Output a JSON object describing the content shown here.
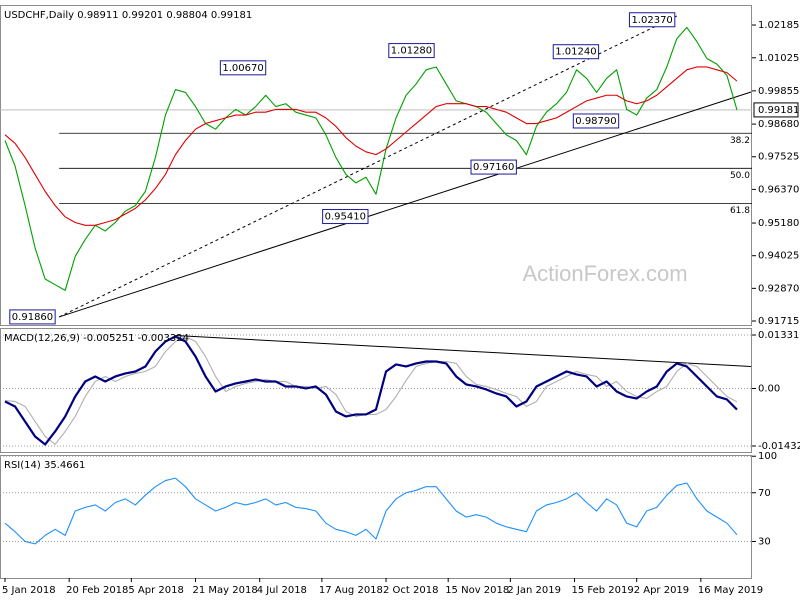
{
  "chart_data": [
    {
      "type": "line",
      "title": "USDCHF,Daily  0.98911 0.99201 0.98804 0.99181",
      "watermark": "ActionForex.com",
      "xlim": [
        -2.5,
        372.5
      ],
      "ylim": [
        0.91574,
        1.02892
      ],
      "yticks": [
        1.02185,
        1.01025,
        0.99855,
        {
          "value": 0.9868,
          "label": "0.98680"
        },
        0.97525,
        {
          "value": 0.9637,
          "label": "0.96370"
        },
        {
          "value": 0.9518,
          "label": "0.95180"
        },
        0.94025,
        {
          "value": 0.9287,
          "label": "0.92870"
        },
        0.91715
      ],
      "grid": false,
      "x": [
        0,
        5,
        10,
        15,
        20,
        25,
        30,
        35,
        40,
        45,
        50,
        55,
        60,
        65,
        70,
        75,
        80,
        85,
        90,
        95,
        100,
        105,
        110,
        115,
        120,
        125,
        130,
        135,
        140,
        145,
        150,
        155,
        160,
        165,
        170,
        175,
        180,
        185,
        190,
        195,
        200,
        205,
        210,
        215,
        220,
        225,
        230,
        235,
        240,
        245,
        250,
        255,
        260,
        265,
        270,
        275,
        280,
        285,
        290,
        295,
        300,
        305,
        310,
        315,
        320,
        325,
        330,
        335,
        340,
        345,
        350,
        355,
        360,
        365
      ],
      "series": [
        {
          "name": "USDCHF",
          "color": "#00a000",
          "values": [
            0.981,
            0.972,
            0.958,
            0.943,
            0.932,
            0.93,
            0.928,
            0.94,
            0.946,
            0.951,
            0.949,
            0.952,
            0.956,
            0.958,
            0.963,
            0.975,
            0.99,
            0.999,
            0.998,
            0.993,
            0.987,
            0.985,
            0.989,
            0.992,
            0.99,
            0.993,
            0.997,
            0.993,
            0.994,
            0.991,
            0.99,
            0.989,
            0.983,
            0.975,
            0.969,
            0.966,
            0.968,
            0.962,
            0.978,
            0.989,
            0.997,
            1.001,
            1.006,
            1.007,
            1.001,
            0.995,
            0.994,
            0.993,
            0.991,
            0.987,
            0.983,
            0.981,
            0.976,
            0.986,
            0.991,
            0.994,
            0.998,
            1.006,
            1.003,
            0.998,
            1.003,
            1.006,
            0.992,
            0.99,
            0.996,
            0.999,
            1.007,
            1.017,
            1.021,
            1.016,
            1.01,
            1.008,
            1.004,
            0.9918
          ]
        },
        {
          "name": "MA",
          "color": "#e00000",
          "values": [
            0.983,
            0.98,
            0.975,
            0.969,
            0.963,
            0.958,
            0.954,
            0.952,
            0.951,
            0.951,
            0.952,
            0.953,
            0.955,
            0.957,
            0.96,
            0.964,
            0.969,
            0.976,
            0.981,
            0.985,
            0.987,
            0.988,
            0.989,
            0.99,
            0.99,
            0.991,
            0.991,
            0.992,
            0.992,
            0.992,
            0.991,
            0.991,
            0.989,
            0.986,
            0.982,
            0.979,
            0.977,
            0.976,
            0.978,
            0.981,
            0.984,
            0.987,
            0.99,
            0.993,
            0.994,
            0.994,
            0.994,
            0.993,
            0.993,
            0.992,
            0.991,
            0.989,
            0.987,
            0.987,
            0.988,
            0.989,
            0.991,
            0.993,
            0.995,
            0.996,
            0.997,
            0.997,
            0.995,
            0.994,
            0.995,
            0.997,
            1.0,
            1.003,
            1.006,
            1.007,
            1.007,
            1.006,
            1.005,
            1.002
          ]
        }
      ],
      "last_price": 0.99181,
      "annotations": [
        {
          "x": 27,
          "value": 0.9186,
          "label": "0.91860"
        },
        {
          "x": 183,
          "value": 0.9541,
          "label": "0.95410"
        },
        {
          "x": 257,
          "value": 0.9716,
          "label": "0.97160"
        },
        {
          "x": 308,
          "value": 0.9879,
          "label": "0.98790"
        },
        {
          "x": 132,
          "value": 1.0067,
          "label": "1.00670"
        },
        {
          "x": 216,
          "value": 1.0128,
          "label": "1.01280"
        },
        {
          "x": 298,
          "value": 1.0124,
          "label": "1.01240"
        },
        {
          "x": 336,
          "value": 1.0237,
          "label": "1.02370"
        }
      ],
      "fib": {
        "from": 0.9186,
        "to": 1.0237,
        "start_x": 27,
        "levels": [
          38.2,
          {
            "value": 50,
            "label": "50.0"
          },
          61.8
        ]
      },
      "lines": [
        {
          "x": [
            27,
            372
          ],
          "y": [
            0.9186,
            0.99815
          ],
          "style": "solid"
        },
        {
          "x": [
            27,
            336
          ],
          "y": [
            0.9186,
            1.02538
          ],
          "style": "dashed"
        }
      ]
    },
    {
      "type": "line",
      "title": "MACD(12,26,9) -0.005251 -0.003324",
      "xlim": [
        -2.5,
        372.5
      ],
      "ylim": [
        -0.01582,
        0.01506
      ],
      "yticks": [
        0.013319,
        {
          "value": 0,
          "label": "0.00"
        },
        -0.014323
      ],
      "grid": true,
      "x": [
        0,
        5,
        10,
        15,
        20,
        25,
        30,
        35,
        40,
        45,
        50,
        55,
        60,
        65,
        70,
        75,
        80,
        85,
        90,
        95,
        100,
        105,
        110,
        115,
        120,
        125,
        130,
        135,
        140,
        145,
        150,
        155,
        160,
        165,
        170,
        175,
        180,
        185,
        190,
        195,
        200,
        205,
        210,
        215,
        220,
        225,
        230,
        235,
        240,
        245,
        250,
        255,
        260,
        265,
        270,
        275,
        280,
        285,
        290,
        295,
        300,
        305,
        310,
        315,
        320,
        325,
        330,
        335,
        340,
        345,
        350,
        355,
        360,
        365
      ],
      "series": [
        {
          "name": "Signal",
          "color": "#b0b0b0",
          "values": [
            -0.003,
            -0.00324,
            -0.00448,
            -0.00822,
            -0.01195,
            -0.01394,
            -0.01071,
            -0.00697,
            -0.00199,
            0.00174,
            0.00299,
            0.00174,
            0.00299,
            0.00374,
            0.00423,
            0.00548,
            0.00921,
            0.0117,
            0.01295,
            0.0117,
            0.00797,
            0.00299,
            -0.00075,
            0.0005,
            0.00125,
            0.00174,
            0.00224,
            0.00174,
            0.00174,
            0.0005,
            0.0005,
            0,
            0.0005,
            -0.00149,
            -0.00573,
            -0.00697,
            -0.00647,
            -0.00647,
            -0.00523,
            -0.002,
            0.002,
            0.00548,
            0.00623,
            0.00672,
            0.00672,
            0.00623,
            0.00299,
            0.001,
            0.0005,
            -0.00025,
            -0.00125,
            -0.00199,
            -0.00448,
            -0.00324,
            0.0005,
            0.00174,
            0.00299,
            0.00423,
            0.00349,
            0.00299,
            0.0005,
            0.00174,
            -0.00075,
            -0.00199,
            -0.00249,
            -0.00075,
            0.0005,
            0.00423,
            0.00623,
            0.00548,
            0.00299,
            0.0005,
            -0.00199,
            -0.003324
          ]
        },
        {
          "name": "MACD",
          "color": "#000080",
          "values": [
            -0.00324,
            -0.00448,
            -0.00822,
            -0.01195,
            -0.01394,
            -0.01071,
            -0.00697,
            -0.00199,
            0.00174,
            0.00299,
            0.00174,
            0.00299,
            0.00374,
            0.00423,
            0.00548,
            0.00921,
            0.0117,
            0.01295,
            0.0117,
            0.00797,
            0.00299,
            -0.00075,
            0.0005,
            0.00125,
            0.00174,
            0.00224,
            0.00174,
            0.00174,
            0.0005,
            0.0005,
            0,
            0.0005,
            -0.00149,
            -0.00573,
            -0.00697,
            -0.00647,
            -0.00647,
            -0.00523,
            0.00423,
            0.00598,
            0.00548,
            0.00623,
            0.00672,
            0.00672,
            0.00623,
            0.00299,
            0.001,
            0.0005,
            -0.00025,
            -0.00125,
            -0.00199,
            -0.00448,
            -0.00324,
            0.0005,
            0.00174,
            0.00299,
            0.00423,
            0.00349,
            0.00299,
            0.0005,
            0.00174,
            -0.00075,
            -0.00199,
            -0.00249,
            -0.00075,
            0.0005,
            0.00423,
            0.00623,
            0.00548,
            0.00299,
            0.0005,
            -0.00199,
            -0.00274,
            -0.005251
          ]
        }
      ],
      "lines": [
        {
          "x": [
            85,
            372
          ],
          "y": [
            0.0132,
            0.00548
          ],
          "style": "solid"
        }
      ]
    },
    {
      "type": "line",
      "title": "RSI(14) 35.4661",
      "xlim": [
        -2.5,
        372.5
      ],
      "ylim": [
        0,
        101
      ],
      "yticks": [
        100,
        70,
        30
      ],
      "grid": true,
      "x": [
        0,
        5,
        10,
        15,
        20,
        25,
        30,
        35,
        40,
        45,
        50,
        55,
        60,
        65,
        70,
        75,
        80,
        85,
        90,
        95,
        100,
        105,
        110,
        115,
        120,
        125,
        130,
        135,
        140,
        145,
        150,
        155,
        160,
        165,
        170,
        175,
        180,
        185,
        190,
        195,
        200,
        205,
        210,
        215,
        220,
        225,
        230,
        235,
        240,
        245,
        250,
        255,
        260,
        265,
        270,
        275,
        280,
        285,
        290,
        295,
        300,
        305,
        310,
        315,
        320,
        325,
        330,
        335,
        340,
        345,
        350,
        355,
        360,
        365
      ],
      "series": [
        {
          "name": "RSI",
          "color": "#1e90ff",
          "values": [
            45,
            38,
            30,
            28,
            35,
            40,
            35,
            55,
            58,
            60,
            55,
            62,
            65,
            60,
            68,
            75,
            80,
            82,
            75,
            65,
            60,
            55,
            58,
            62,
            60,
            62,
            65,
            60,
            62,
            58,
            57,
            55,
            45,
            40,
            38,
            35,
            40,
            32,
            55,
            65,
            70,
            72,
            75,
            75,
            65,
            55,
            50,
            52,
            50,
            45,
            42,
            40,
            38,
            55,
            60,
            62,
            65,
            70,
            62,
            55,
            65,
            60,
            45,
            42,
            55,
            58,
            68,
            76,
            78,
            65,
            55,
            50,
            45,
            35.4661
          ]
        }
      ],
      "xticks": [
        {
          "value": 0,
          "label": "5 Jan 2018"
        },
        {
          "value": 32,
          "label": "20 Feb 2018"
        },
        {
          "value": 63,
          "label": "5 Apr 2018"
        },
        {
          "value": 95,
          "label": "21 May 2018"
        },
        {
          "value": 127,
          "label": "4 Jul 2018"
        },
        {
          "value": 158,
          "label": "17 Aug 2018"
        },
        {
          "value": 190,
          "label": "2 Oct 2018"
        },
        {
          "value": 221,
          "label": "15 Nov 2018"
        },
        {
          "value": 252,
          "label": "2 Jan 2019"
        },
        {
          "value": 284,
          "label": "15 Feb 2019"
        },
        {
          "value": 315,
          "label": "2 Apr 2019"
        },
        {
          "value": 347,
          "label": "16 May 2019"
        }
      ]
    }
  ]
}
